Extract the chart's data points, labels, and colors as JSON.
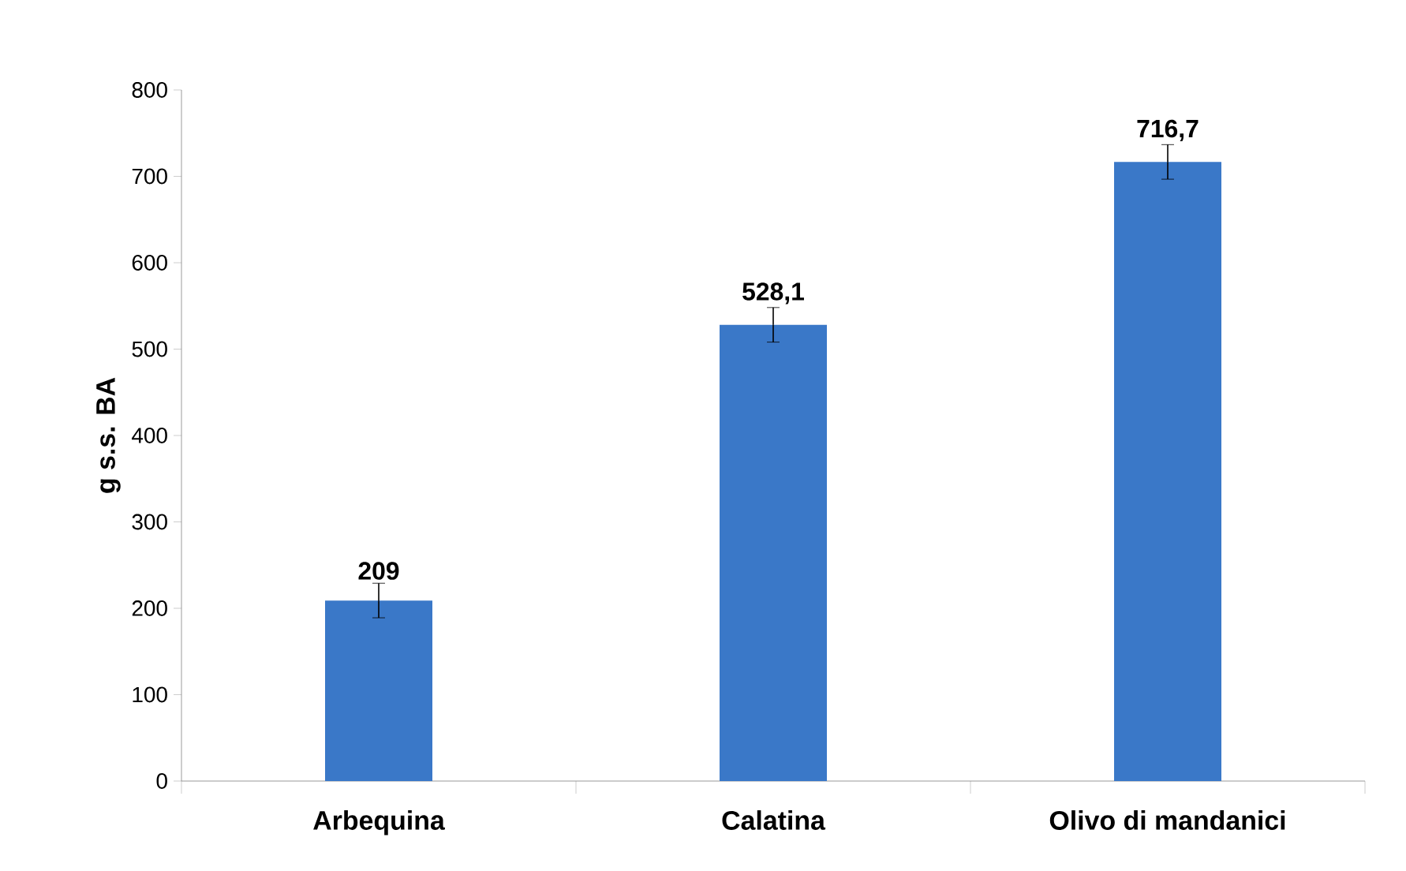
{
  "chart_data": {
    "type": "bar",
    "ylabel": "g s.s. BA",
    "categories": [
      "Arbequina",
      "Calatina",
      "Olivo di mandanici"
    ],
    "values": [
      209,
      528.1,
      716.7
    ],
    "errors": [
      20,
      20,
      20
    ],
    "value_labels": [
      "209",
      "528,1",
      "716,7"
    ],
    "color": "#3a78c8",
    "ylim": [
      0,
      800
    ],
    "yticks": [
      0,
      100,
      200,
      300,
      400,
      500,
      600,
      700,
      800
    ]
  }
}
